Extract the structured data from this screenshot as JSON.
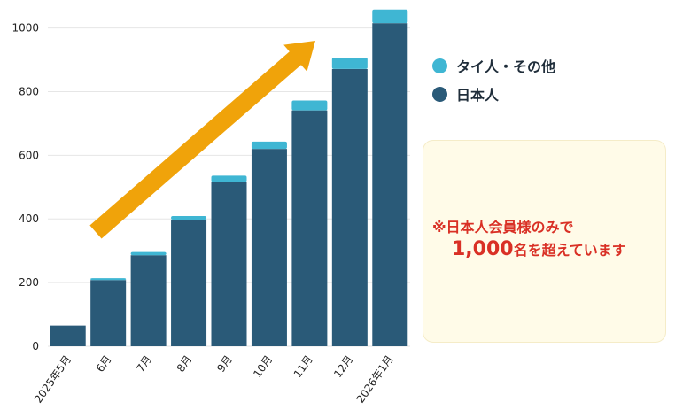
{
  "chart_data": {
    "type": "bar",
    "stacked": true,
    "categories": [
      "2025年5月",
      "6月",
      "7月",
      "8月",
      "9月",
      "10月",
      "11月",
      "12月",
      "2026年1月"
    ],
    "series": [
      {
        "name": "日本人",
        "color": "#2a5a78",
        "values": [
          65,
          208,
          286,
          398,
          516,
          620,
          741,
          871,
          1015
        ]
      },
      {
        "name": "タイ人・その他",
        "color": "#3fb6d3",
        "values": [
          0,
          6,
          10,
          11,
          20,
          23,
          31,
          36,
          43
        ]
      }
    ],
    "ylim": [
      0,
      1060
    ],
    "yticks": [
      0,
      200,
      400,
      600,
      800,
      1000
    ],
    "grid": true,
    "legend_position": "right",
    "trend_arrow_color": "#f0a30a"
  },
  "legend": {
    "items": [
      {
        "label": "タイ人・その他",
        "color": "#3fb6d3"
      },
      {
        "label": "日本人",
        "color": "#2a5a78"
      }
    ]
  },
  "note": {
    "line1": "※日本人会員様のみで",
    "line2_big": "1,000",
    "line2_rest": "名を超えています"
  }
}
